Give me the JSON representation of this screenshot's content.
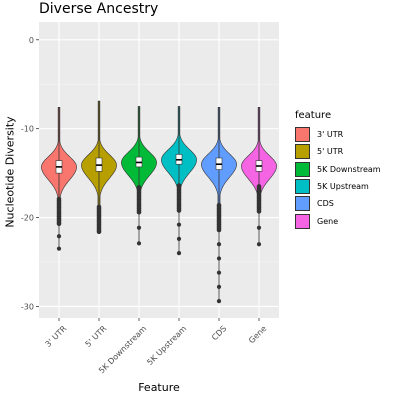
{
  "chart_data": {
    "type": "violin",
    "title": "Diverse Ancestry",
    "xlabel": "Feature",
    "ylabel": "Nucleotide Diversity",
    "ylim": [
      -31.3,
      2.0
    ],
    "yticks": [
      0,
      -10,
      -20,
      -30
    ],
    "grid": true,
    "legend": {
      "title": "feature",
      "placement": "right",
      "entries": [
        "3' UTR",
        "5' UTR",
        "5K Downstream",
        "5K Upstream",
        "CDS",
        "Gene"
      ]
    },
    "categories": [
      "3' UTR",
      "5' UTR",
      "5K Downstream",
      "5K Upstream",
      "CDS",
      "Gene"
    ],
    "colors": [
      "#F8766D",
      "#B79F00",
      "#00BA38",
      "#00BFC4",
      "#619CFF",
      "#F564E3"
    ],
    "series": [
      {
        "name": "3' UTR",
        "q1": -15.0,
        "median": -14.3,
        "q3": -13.6,
        "violin_top": -7.6,
        "violin_bottom": -20.7,
        "min": -23.5,
        "max": -7.6
      },
      {
        "name": "5' UTR",
        "q1": -14.8,
        "median": -14.1,
        "q3": -13.3,
        "violin_top": -6.9,
        "violin_bottom": -21.6,
        "min": -21.6,
        "max": -6.9
      },
      {
        "name": "5K Downstream",
        "q1": -14.3,
        "median": -13.8,
        "q3": -13.2,
        "violin_top": -7.5,
        "violin_bottom": -19.4,
        "min": -22.9,
        "max": -7.5
      },
      {
        "name": "5K Upstream",
        "q1": -14.0,
        "median": -13.5,
        "q3": -12.9,
        "violin_top": -7.5,
        "violin_bottom": -19.2,
        "min": -24.0,
        "max": -7.5
      },
      {
        "name": "CDS",
        "q1": -14.6,
        "median": -14.0,
        "q3": -13.3,
        "violin_top": -7.6,
        "violin_bottom": -21.4,
        "min": -29.4,
        "max": -7.6
      },
      {
        "name": "Gene",
        "q1": -14.8,
        "median": -14.2,
        "q3": -13.6,
        "violin_top": -7.6,
        "violin_bottom": -19.3,
        "min": -23.0,
        "max": -7.6
      }
    ]
  }
}
